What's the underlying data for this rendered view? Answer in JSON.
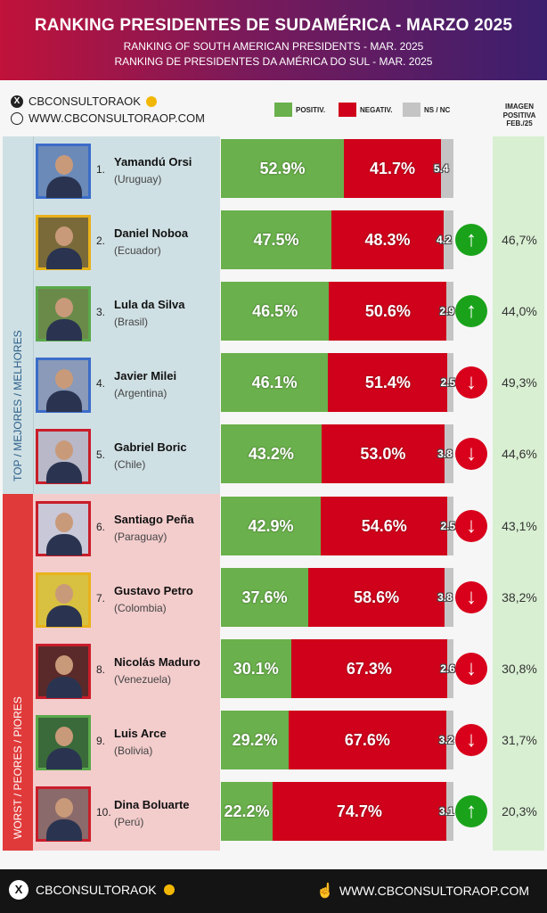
{
  "header": {
    "title": "RANKING PRESIDENTES DE SUDAMÉRICA - MARZO 2025",
    "subtitle_en": "RANKING OF SOUTH AMERICAN PRESIDENTS - MAR. 2025",
    "subtitle_pt": "RANKING DE PRESIDENTES DA AMÉRICA DO SUL - MAR. 2025"
  },
  "social": {
    "handle": "CBCONSULTORAOK",
    "website": "WWW.CBCONSULTORAOP.COM"
  },
  "legend": {
    "positive": "POSITIV.",
    "negative": "NEGATIV.",
    "nsnc": "NS / NC"
  },
  "imagen_positiva_header": [
    "IMAGEN",
    "POSITIVA",
    "FEB./25"
  ],
  "groups": {
    "top": "TOP / MEJORES / MELHORES",
    "bottom": "WORST / PEORES / PIORES"
  },
  "colors": {
    "positive": "#6ab04c",
    "negative": "#d0021b",
    "nsnc": "#c4c4c4",
    "up": "#1aa31a",
    "down": "#d9001b"
  },
  "chart_data": {
    "type": "bar",
    "stacked": true,
    "orientation": "horizontal",
    "title": "RANKING PRESIDENTES DE SUDAMÉRICA - MARZO 2025",
    "categories": [
      "Yamandú Orsi",
      "Daniel Noboa",
      "Lula da Silva",
      "Javier Milei",
      "Gabriel Boric",
      "Santiago Peña",
      "Gustavo Petro",
      "Nicolás Maduro",
      "Luis Arce",
      "Dina Boluarte"
    ],
    "series": [
      {
        "name": "POSITIV.",
        "values": [
          52.9,
          47.5,
          46.5,
          46.1,
          43.2,
          42.9,
          37.6,
          30.1,
          29.2,
          22.2
        ]
      },
      {
        "name": "NEGATIV.",
        "values": [
          41.7,
          48.3,
          50.6,
          51.4,
          53.0,
          54.6,
          58.6,
          67.3,
          67.6,
          74.7
        ]
      },
      {
        "name": "NS / NC",
        "values": [
          5.4,
          4.2,
          2.9,
          2.5,
          3.8,
          2.5,
          3.8,
          2.6,
          3.2,
          3.1
        ]
      }
    ],
    "legend_position": "top"
  },
  "rows": [
    {
      "rank": "1.",
      "name": "Yamandú Orsi",
      "country": "(Uruguay)",
      "pos": "52.9%",
      "neg": "41.7%",
      "ns": "5.4",
      "trend": "",
      "prev": "",
      "photo": "#6b8ab8",
      "frame": "#3b6cc9"
    },
    {
      "rank": "2.",
      "name": "Daniel Noboa",
      "country": "(Ecuador)",
      "pos": "47.5%",
      "neg": "48.3%",
      "ns": "4.2",
      "trend": "up",
      "prev": "46,7%",
      "photo": "#7a6a3a",
      "frame": "#e8b21a"
    },
    {
      "rank": "3.",
      "name": "Lula da Silva",
      "country": "(Brasil)",
      "pos": "46.5%",
      "neg": "50.6%",
      "ns": "2.9",
      "trend": "up",
      "prev": "44,0%",
      "photo": "#6a8a4a",
      "frame": "#5aa84a"
    },
    {
      "rank": "4.",
      "name": "Javier Milei",
      "country": "(Argentina)",
      "pos": "46.1%",
      "neg": "51.4%",
      "ns": "2.5",
      "trend": "down",
      "prev": "49,3%",
      "photo": "#8a9ab8",
      "frame": "#3b6cc9"
    },
    {
      "rank": "5.",
      "name": "Gabriel Boric",
      "country": "(Chile)",
      "pos": "43.2%",
      "neg": "53.0%",
      "ns": "3.8",
      "trend": "down",
      "prev": "44,6%",
      "photo": "#b8b8c8",
      "frame": "#c91d2a"
    },
    {
      "rank": "6.",
      "name": "Santiago Peña",
      "country": "(Paraguay)",
      "pos": "42.9%",
      "neg": "54.6%",
      "ns": "2.5",
      "trend": "down",
      "prev": "43,1%",
      "photo": "#c8c8d8",
      "frame": "#c91d2a"
    },
    {
      "rank": "7.",
      "name": "Gustavo Petro",
      "country": "(Colombia)",
      "pos": "37.6%",
      "neg": "58.6%",
      "ns": "3.8",
      "trend": "down",
      "prev": "38,2%",
      "photo": "#d8c040",
      "frame": "#e8b21a"
    },
    {
      "rank": "8.",
      "name": "Nicolás Maduro",
      "country": "(Venezuela)",
      "pos": "30.1%",
      "neg": "67.3%",
      "ns": "2.6",
      "trend": "down",
      "prev": "30,8%",
      "photo": "#5a2a2a",
      "frame": "#c91d2a"
    },
    {
      "rank": "9.",
      "name": "Luis Arce",
      "country": "(Bolivia)",
      "pos": "29.2%",
      "neg": "67.6%",
      "ns": "3.2",
      "trend": "down",
      "prev": "31,7%",
      "photo": "#3a6a3a",
      "frame": "#5aa84a"
    },
    {
      "rank": "10.",
      "name": "Dina Boluarte",
      "country": "(Perú)",
      "pos": "22.2%",
      "neg": "74.7%",
      "ns": "3.1",
      "trend": "up",
      "prev": "20,3%",
      "photo": "#8a6a6a",
      "frame": "#c91d2a"
    }
  ],
  "footer": {
    "handle": "CBCONSULTORAOK",
    "website": "WWW.CBCONSULTORAOP.COM"
  }
}
